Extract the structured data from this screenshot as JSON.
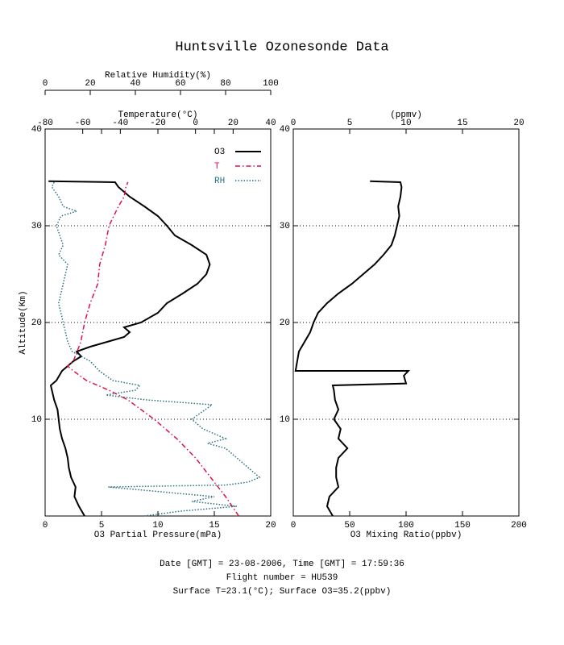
{
  "title": "Huntsville Ozonesonde Data",
  "footer": [
    "Date [GMT] = 23-08-2006,  Time [GMT] = 17:59:36",
    "Flight number = HU539",
    "Surface T=23.1(°C); Surface O3=35.2(ppbv)"
  ],
  "chart_data": [
    {
      "type": "line",
      "ylabel": "Altitude(Km)",
      "ylim": [
        0,
        40
      ],
      "yticks": [
        10,
        20,
        30,
        40
      ],
      "grid": true,
      "xlabel": "O3 Partial Pressure(mPa)",
      "xlim": [
        0,
        20
      ],
      "xticks": [
        0,
        5,
        10,
        15,
        20
      ],
      "x2label": "Temperature(°C)",
      "x2lim": [
        -80,
        40
      ],
      "x2ticks": [
        -80,
        -60,
        -40,
        -20,
        0,
        20,
        40
      ],
      "x3label": "Relative Humidity(%)",
      "x3lim": [
        0,
        100
      ],
      "x3ticks": [
        0,
        20,
        40,
        60,
        80,
        100
      ],
      "legend": "upper right",
      "series": [
        {
          "name": "O3",
          "color": "#000000",
          "style": "solid",
          "axis": "x",
          "altitude": [
            0,
            1,
            2,
            3,
            4,
            5,
            6,
            7,
            8,
            9,
            10,
            11,
            12,
            13,
            13.5,
            14,
            15,
            16,
            16.5,
            17,
            17.5,
            18,
            18.5,
            19,
            19.5,
            20,
            21,
            22,
            23,
            24,
            25,
            26,
            27,
            28,
            29,
            30,
            31,
            32,
            33,
            34,
            34.5,
            34.6
          ],
          "values": [
            3.5,
            3.0,
            2.6,
            2.7,
            2.3,
            2.1,
            2.0,
            1.8,
            1.5,
            1.3,
            1.2,
            1.1,
            0.8,
            0.6,
            0.5,
            1.0,
            1.5,
            2.5,
            3.2,
            2.8,
            4.0,
            5.5,
            7.0,
            7.5,
            7.0,
            8.5,
            10.0,
            10.8,
            12.2,
            13.5,
            14.3,
            14.6,
            14.3,
            13.0,
            11.5,
            10.8,
            10.0,
            8.8,
            7.5,
            6.5,
            6.2,
            0.3
          ]
        },
        {
          "name": "T",
          "color": "#e0104a",
          "style": "dashdot",
          "axis": "x2",
          "altitude": [
            0,
            2,
            4,
            6,
            8,
            10,
            12,
            13,
            14,
            15,
            15.5,
            16,
            17,
            18,
            20,
            22,
            24,
            26,
            28,
            30,
            32,
            33,
            34,
            34.5
          ],
          "values": [
            23,
            16,
            8,
            0,
            -10,
            -22,
            -36,
            -46,
            -58,
            -65,
            -68,
            -65,
            -63,
            -61,
            -59,
            -56,
            -52,
            -51,
            -48,
            -46,
            -41,
            -38,
            -37,
            -36
          ]
        },
        {
          "name": "RH",
          "color": "#2a7080",
          "style": "dotted",
          "axis": "x3",
          "altitude": [
            0,
            0.5,
            1,
            1.5,
            2,
            3,
            3.2,
            3.5,
            4,
            5,
            6,
            7,
            7.5,
            8,
            9,
            10,
            10.5,
            11.5,
            12,
            12.5,
            13,
            13.5,
            14,
            15,
            16,
            17,
            18,
            20,
            22,
            24,
            26,
            27,
            28,
            30,
            31,
            31.5,
            32,
            33,
            34,
            34.5
          ],
          "values": [
            44,
            60,
            85,
            65,
            75,
            28,
            80,
            90,
            95,
            90,
            85,
            80,
            72,
            80,
            70,
            65,
            68,
            74,
            45,
            27,
            40,
            42,
            30,
            24,
            20,
            12,
            10,
            8,
            6,
            8,
            10,
            6,
            8,
            5,
            7,
            14,
            8,
            6,
            3,
            4
          ]
        }
      ]
    },
    {
      "type": "line",
      "ylim": [
        0,
        40
      ],
      "yticks": [
        10,
        20,
        30,
        40
      ],
      "grid": true,
      "xlabel": "O3 Mixing Ratio(ppbv)",
      "xlim": [
        0,
        200
      ],
      "xticks": [
        0,
        50,
        100,
        150,
        200
      ],
      "x2label": "(ppmv)",
      "x2lim": [
        0,
        20
      ],
      "x2ticks": [
        0,
        5,
        10,
        15,
        20
      ],
      "series": [
        {
          "color": "#000000",
          "style": "solid",
          "axis": "x",
          "altitude": [
            0,
            1,
            2,
            3,
            4,
            5,
            6,
            7,
            8,
            9,
            10,
            11,
            12,
            13,
            13.5,
            13.7,
            14.5,
            15,
            15,
            17,
            18,
            19,
            20,
            21,
            22,
            23,
            24,
            25,
            26,
            27,
            28,
            29,
            30,
            31,
            32,
            33,
            34,
            34.5,
            34.6
          ],
          "values": [
            35,
            30,
            32,
            40,
            38,
            38,
            40,
            48,
            40,
            42,
            36,
            40,
            37,
            36,
            35,
            100,
            98,
            102,
            2,
            5,
            10,
            15,
            18,
            22,
            30,
            40,
            52,
            62,
            72,
            80,
            87,
            90,
            92,
            94,
            93,
            95,
            96,
            95,
            68
          ]
        }
      ]
    }
  ]
}
